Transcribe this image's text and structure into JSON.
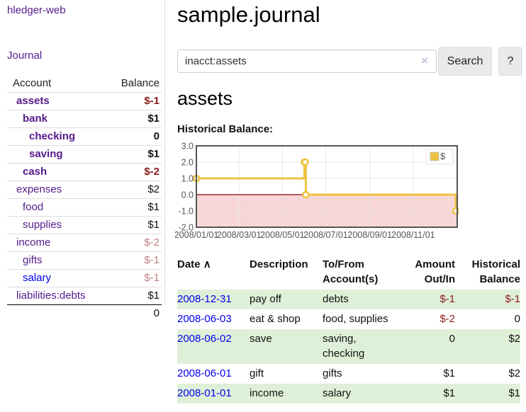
{
  "colors": {
    "link_purple": "#551a8b",
    "link_blue": "#0000ee",
    "negative_strong": "#8b1a1a",
    "negative_dim": "#c08080",
    "row_stripe_green": "#dff0d8",
    "chart_line_gold": "#edc240",
    "chart_negative_region": "#f7d6d6",
    "chart_zero_line": "#8b0000"
  },
  "sidebar": {
    "app_title": "hledger-web",
    "nav_journal": "Journal",
    "accounts": {
      "header_account": "Account",
      "header_balance": "Balance",
      "rows": [
        {
          "name": "assets",
          "balance": "$-1",
          "level": 1,
          "bold": true,
          "balance_class": "neg-strong",
          "link_color": "purple"
        },
        {
          "name": "bank",
          "balance": "$1",
          "level": 2,
          "bold": true,
          "balance_class": "plain",
          "link_color": "purple"
        },
        {
          "name": "checking",
          "balance": "0",
          "level": 3,
          "bold": true,
          "balance_class": "plain",
          "link_color": "purple"
        },
        {
          "name": "saving",
          "balance": "$1",
          "level": 3,
          "bold": true,
          "balance_class": "plain",
          "link_color": "purple"
        },
        {
          "name": "cash",
          "balance": "$-2",
          "level": 2,
          "bold": true,
          "balance_class": "neg-strong",
          "link_color": "purple"
        },
        {
          "name": "expenses",
          "balance": "$2",
          "level": 1,
          "bold": false,
          "balance_class": "plain",
          "link_color": "purple"
        },
        {
          "name": "food",
          "balance": "$1",
          "level": 2,
          "bold": false,
          "balance_class": "plain",
          "link_color": "purple"
        },
        {
          "name": "supplies",
          "balance": "$1",
          "level": 2,
          "bold": false,
          "balance_class": "plain",
          "link_color": "purple"
        },
        {
          "name": "income",
          "balance": "$-2",
          "level": 1,
          "bold": false,
          "balance_class": "neg-dim",
          "link_color": "purple"
        },
        {
          "name": "gifts",
          "balance": "$-1",
          "level": 2,
          "bold": false,
          "balance_class": "neg-dim",
          "link_color": "purple"
        },
        {
          "name": "salary",
          "balance": "$-1",
          "level": 2,
          "bold": false,
          "balance_class": "neg-dim",
          "link_color": "blue"
        },
        {
          "name": "liabilities:debts",
          "balance": "$1",
          "level": 1,
          "bold": false,
          "balance_class": "plain",
          "link_color": "purple"
        }
      ],
      "total": "0"
    }
  },
  "main": {
    "title": "sample.journal",
    "search": {
      "value": "inacct:assets",
      "clear": "×",
      "search_button": "Search",
      "help_button": "?"
    },
    "account_heading": "assets",
    "chart_label": "Historical Balance:"
  },
  "chart_data": {
    "type": "line",
    "step": true,
    "title": "Historical Balance:",
    "series": [
      {
        "name": "$",
        "color": "#edc240",
        "points": [
          [
            "2008-01-01",
            1
          ],
          [
            "2008-06-01",
            2
          ],
          [
            "2008-06-02",
            2
          ],
          [
            "2008-06-03",
            0
          ],
          [
            "2008-12-31",
            -1
          ]
        ]
      }
    ],
    "xlim": [
      "2008-01-01",
      "2008-12-31"
    ],
    "ylim": [
      -2,
      3
    ],
    "x_ticks": [
      "2008/01/01",
      "2008/03/01",
      "2008/05/01",
      "2008/07/01",
      "2008/09/01",
      "2008/11/01"
    ],
    "y_ticks": [
      "3.0",
      "2.0",
      "1.0",
      "0.0",
      "-1.0",
      "-2.0"
    ],
    "grid": true,
    "legend_position": "top-right",
    "negative_region": true
  },
  "register": {
    "headers": {
      "date": "Date",
      "sort_arrow": "∧",
      "description": "Description",
      "accounts": "To/From Account(s)",
      "amount": "Amount Out/In",
      "balance": "Historical Balance"
    },
    "rows": [
      {
        "date": "2008-12-31",
        "description": "pay off",
        "accounts": "debts",
        "amount": "$-1",
        "amount_negative": true,
        "balance": "$-1",
        "balance_negative": true
      },
      {
        "date": "2008-06-03",
        "description": "eat & shop",
        "accounts": "food, supplies",
        "amount": "$-2",
        "amount_negative": true,
        "balance": "0",
        "balance_negative": false
      },
      {
        "date": "2008-06-02",
        "description": "save",
        "accounts": "saving, checking",
        "amount": "0",
        "amount_negative": false,
        "balance": "$2",
        "balance_negative": false
      },
      {
        "date": "2008-06-01",
        "description": "gift",
        "accounts": "gifts",
        "amount": "$1",
        "amount_negative": false,
        "balance": "$2",
        "balance_negative": false
      },
      {
        "date": "2008-01-01",
        "description": "income",
        "accounts": "salary",
        "amount": "$1",
        "amount_negative": false,
        "balance": "$1",
        "balance_negative": false
      }
    ]
  }
}
